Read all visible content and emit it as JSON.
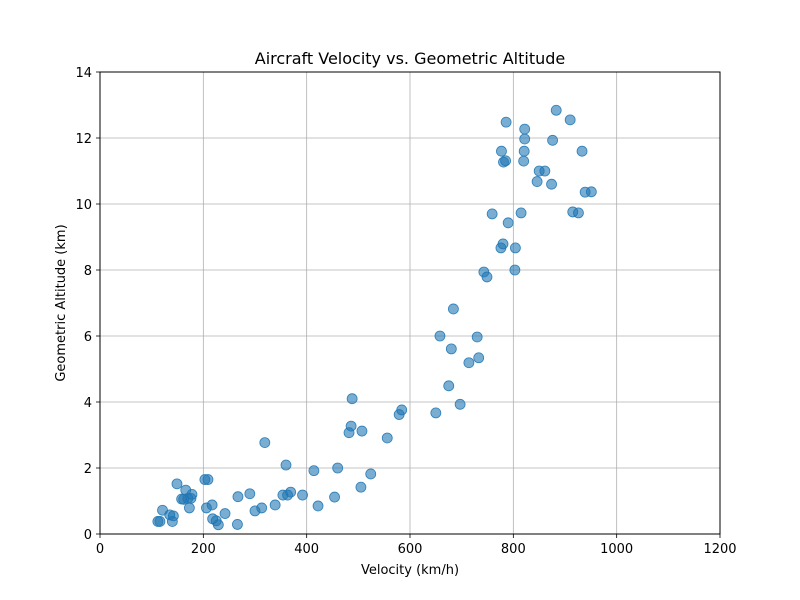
{
  "chart_data": {
    "type": "scatter",
    "title": "Aircraft Velocity vs. Geometric Altitude",
    "xlabel": "Velocity (km/h)",
    "ylabel": "Geometric Altitude (km)",
    "xlim": [
      0,
      1200
    ],
    "ylim": [
      0,
      14
    ],
    "xticks": [
      0,
      200,
      400,
      600,
      800,
      1000,
      1200
    ],
    "yticks": [
      0,
      2,
      4,
      6,
      8,
      10,
      12,
      14
    ],
    "grid": true,
    "point_color": "#1f77b4",
    "point_opacity": 0.6,
    "points": [
      [
        112,
        0.38
      ],
      [
        116,
        0.38
      ],
      [
        121,
        0.72
      ],
      [
        135,
        0.58
      ],
      [
        140,
        0.38
      ],
      [
        142,
        0.55
      ],
      [
        149,
        1.52
      ],
      [
        158,
        1.06
      ],
      [
        162,
        1.05
      ],
      [
        166,
        1.33
      ],
      [
        170,
        1.08
      ],
      [
        173,
        0.79
      ],
      [
        176,
        1.08
      ],
      [
        178,
        1.2
      ],
      [
        203,
        1.65
      ],
      [
        206,
        0.79
      ],
      [
        209,
        1.65
      ],
      [
        217,
        0.88
      ],
      [
        218,
        0.46
      ],
      [
        225,
        0.4
      ],
      [
        229,
        0.28
      ],
      [
        242,
        0.62
      ],
      [
        266,
        0.29
      ],
      [
        267,
        1.13
      ],
      [
        290,
        1.22
      ],
      [
        300,
        0.7
      ],
      [
        313,
        0.79
      ],
      [
        319,
        2.77
      ],
      [
        339,
        0.88
      ],
      [
        354,
        1.18
      ],
      [
        360,
        2.09
      ],
      [
        363,
        1.18
      ],
      [
        369,
        1.27
      ],
      [
        392,
        1.18
      ],
      [
        414,
        1.92
      ],
      [
        422,
        0.85
      ],
      [
        454,
        1.12
      ],
      [
        460,
        2.0
      ],
      [
        482,
        3.07
      ],
      [
        486,
        3.27
      ],
      [
        488,
        4.1
      ],
      [
        505,
        1.42
      ],
      [
        507,
        3.12
      ],
      [
        524,
        1.82
      ],
      [
        556,
        2.91
      ],
      [
        579,
        3.62
      ],
      [
        584,
        3.76
      ],
      [
        650,
        3.67
      ],
      [
        658,
        6.0
      ],
      [
        675,
        4.49
      ],
      [
        680,
        5.61
      ],
      [
        684,
        6.82
      ],
      [
        697,
        3.93
      ],
      [
        714,
        5.19
      ],
      [
        730,
        5.97
      ],
      [
        733,
        5.34
      ],
      [
        743,
        7.94
      ],
      [
        749,
        7.79
      ],
      [
        759,
        9.7
      ],
      [
        776,
        8.67
      ],
      [
        777,
        11.6
      ],
      [
        780,
        8.79
      ],
      [
        781,
        11.27
      ],
      [
        785,
        11.31
      ],
      [
        786,
        12.48
      ],
      [
        790,
        9.43
      ],
      [
        803,
        8.0
      ],
      [
        804,
        8.67
      ],
      [
        815,
        9.73
      ],
      [
        820,
        11.3
      ],
      [
        821,
        11.6
      ],
      [
        822,
        12.27
      ],
      [
        822,
        11.97
      ],
      [
        846,
        10.68
      ],
      [
        850,
        11.0
      ],
      [
        861,
        11.0
      ],
      [
        874,
        10.6
      ],
      [
        876,
        11.93
      ],
      [
        883,
        12.84
      ],
      [
        910,
        12.55
      ],
      [
        915,
        9.76
      ],
      [
        926,
        9.73
      ],
      [
        933,
        11.6
      ],
      [
        939,
        10.36
      ],
      [
        951,
        10.37
      ]
    ]
  }
}
